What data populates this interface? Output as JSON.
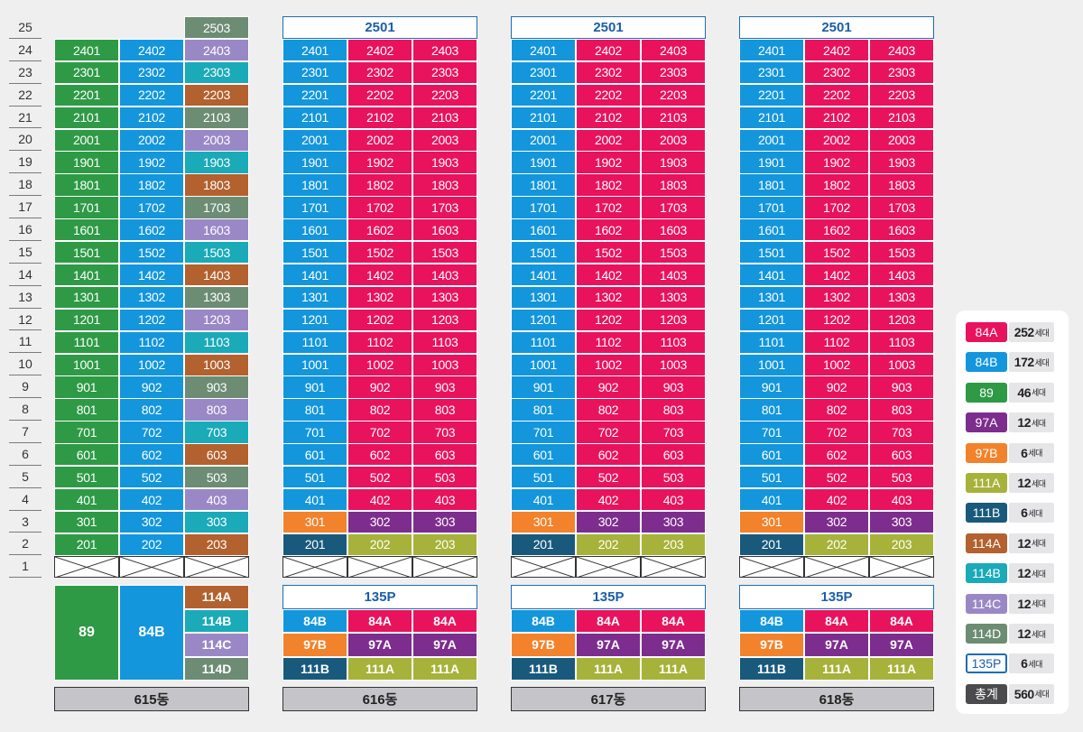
{
  "floors": [
    "25",
    "24",
    "23",
    "22",
    "21",
    "20",
    "19",
    "18",
    "17",
    "16",
    "15",
    "14",
    "13",
    "12",
    "11",
    "10",
    "9",
    "8",
    "7",
    "6",
    "5",
    "4",
    "3",
    "2",
    "1"
  ],
  "colors": {
    "84A": "#e8135c",
    "84B": "#1396dc",
    "89": "#2e9a46",
    "97A": "#7d2d8e",
    "97B": "#f2822b",
    "111A": "#a6b23a",
    "111B": "#195a7c",
    "114A": "#b2612f",
    "114B": "#1aaab8",
    "114C": "#9a88c6",
    "114D": "#6c8c74",
    "135P": "#ffffff",
    "total": "#4b4b4d"
  },
  "b615": {
    "name": "615동",
    "col1_types": [
      "89"
    ],
    "penthouse_unit": "2503",
    "type_summary": {
      "big_left": "89",
      "big_mid": "84B",
      "right": [
        "114A",
        "114B",
        "114C",
        "114D"
      ]
    }
  },
  "typical": {
    "penthouse_label": "2501",
    "summary_top": "135P",
    "summary_rows": [
      [
        "84B",
        "84A",
        "84A"
      ],
      [
        "97B",
        "97A",
        "97A"
      ],
      [
        "111B",
        "111A",
        "111A"
      ]
    ],
    "names": [
      "616동",
      "617동",
      "618동"
    ]
  },
  "legend": [
    {
      "label": "84A",
      "count": "252",
      "unit": "세대",
      "key": "84A"
    },
    {
      "label": "84B",
      "count": "172",
      "unit": "세대",
      "key": "84B"
    },
    {
      "label": "89",
      "count": "46",
      "unit": "세대",
      "key": "89"
    },
    {
      "label": "97A",
      "count": "12",
      "unit": "세대",
      "key": "97A"
    },
    {
      "label": "97B",
      "count": "6",
      "unit": "세대",
      "key": "97B"
    },
    {
      "label": "111A",
      "count": "12",
      "unit": "세대",
      "key": "111A"
    },
    {
      "label": "111B",
      "count": "6",
      "unit": "세대",
      "key": "111B"
    },
    {
      "label": "114A",
      "count": "12",
      "unit": "세대",
      "key": "114A"
    },
    {
      "label": "114B",
      "count": "12",
      "unit": "세대",
      "key": "114B"
    },
    {
      "label": "114C",
      "count": "12",
      "unit": "세대",
      "key": "114C"
    },
    {
      "label": "114D",
      "count": "12",
      "unit": "세대",
      "key": "114D"
    },
    {
      "label": "135P",
      "count": "6",
      "unit": "세대",
      "key": "135P"
    },
    {
      "label": "총계",
      "count": "560",
      "unit": "세대",
      "key": "total"
    }
  ]
}
